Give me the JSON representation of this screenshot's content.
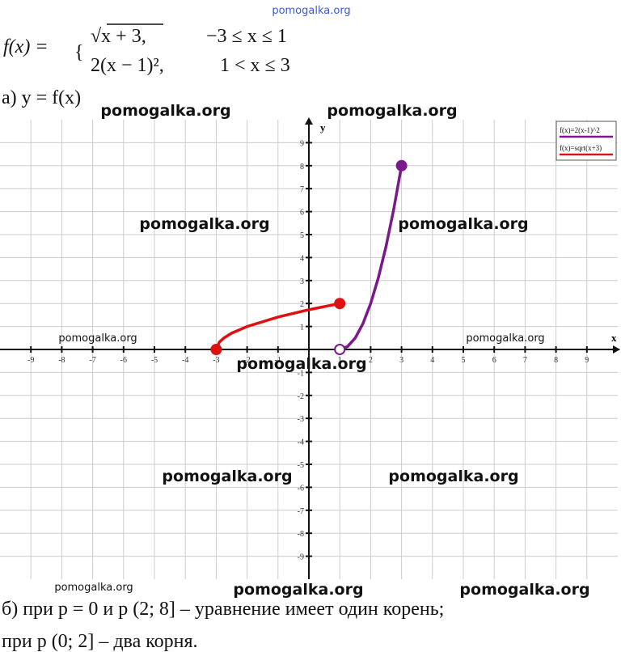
{
  "header": {
    "site": "pomogalka.org"
  },
  "formula": {
    "lhs": "f(x) =",
    "case1_expr": "√x + 3,",
    "case1_cond": "−3 ≤ x ≤ 1",
    "case2_expr": "2(x − 1)²,",
    "case2_cond": "1 < x ≤ 3"
  },
  "part_a": "а) y = f(x)",
  "chart_data": {
    "type": "line",
    "x_label": "x",
    "y_label": "y",
    "xlim": [
      -10,
      10
    ],
    "ylim": [
      -10,
      10
    ],
    "xticks": [
      -9,
      -8,
      -7,
      -6,
      -5,
      -4,
      -3,
      -2,
      -1,
      1,
      2,
      3,
      4,
      5,
      6,
      7,
      8,
      9
    ],
    "yticks": [
      -9,
      -8,
      -7,
      -6,
      -5,
      -4,
      -3,
      -2,
      -1,
      1,
      2,
      3,
      4,
      5,
      6,
      7,
      8,
      9
    ],
    "grid": true,
    "legend": "upper right",
    "series": [
      {
        "name": "f(x)=2(x-1)^2",
        "color": "#7a1a8a",
        "endpoints": [
          "open",
          "filled"
        ],
        "x": [
          1,
          1.25,
          1.5,
          1.75,
          2,
          2.25,
          2.5,
          2.75,
          3
        ],
        "values": [
          0,
          0.125,
          0.5,
          1.125,
          2,
          3.125,
          4.5,
          6.125,
          8
        ]
      },
      {
        "name": "f(x)=sqrt(x+3)",
        "color": "#e01010",
        "endpoints": [
          "filled",
          "filled"
        ],
        "x": [
          -3,
          -2.9,
          -2.75,
          -2.5,
          -2,
          -1,
          0,
          1
        ],
        "values": [
          0,
          0.32,
          0.5,
          0.71,
          1,
          1.41,
          1.73,
          2
        ]
      }
    ]
  },
  "answer": {
    "line1": "б) при p = 0 и p (2; 8] – уравнение имеет один корень;",
    "line2": "при p (0; 2] – два корня."
  },
  "watermarks": [
    "pomogalka.org",
    "pomogalka.org",
    "pomogalka.org",
    "pomogalka.org",
    "pomogalka.org",
    "pomogalka.org",
    "pomogalka.org",
    "pomogalka.org",
    "pomogalka.org",
    "pomogalka.org",
    "pomogalka.org",
    "pomogalka.org",
    "pomogalka.org"
  ]
}
